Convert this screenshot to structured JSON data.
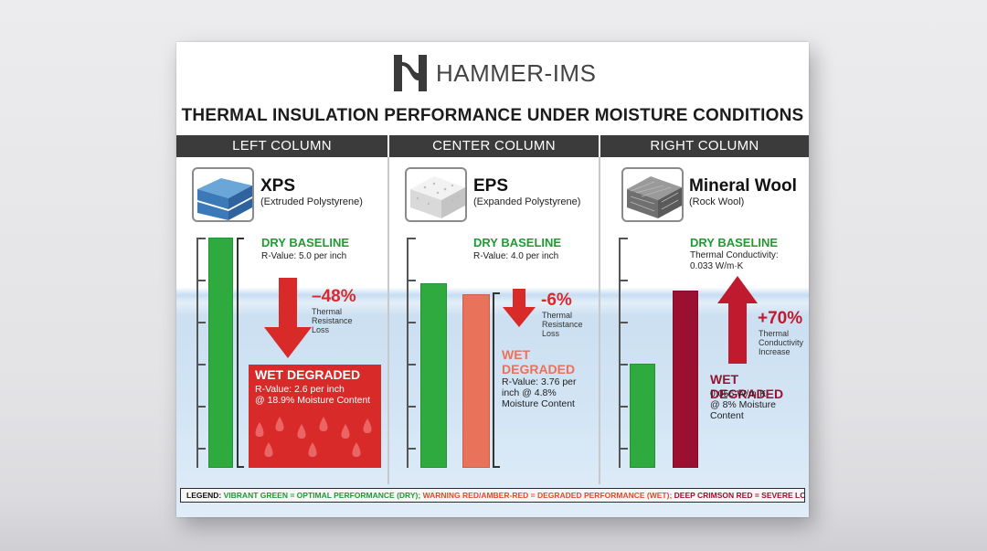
{
  "brand": {
    "name": "HAMMER-IMS"
  },
  "title": "THERMAL INSULATION PERFORMANCE UNDER MOISTURE CONDITIONS",
  "columns": [
    {
      "header": "LEFT COLUMN",
      "material": "XPS",
      "material_sub": "(Extruded Polystyrene)",
      "dry_label": "DRY BASELINE",
      "dry_desc": "R-Value: 5.0 per inch",
      "change": "–48%",
      "change_note": [
        "Thermal",
        "Resistance",
        "Loss"
      ],
      "wet_label": "WET DEGRADED",
      "wet_desc": [
        "R-Value: 2.6 per inch",
        "@ 18.9% Moisture Content"
      ]
    },
    {
      "header": "CENTER COLUMN",
      "material": "EPS",
      "material_sub": "(Expanded Polystyrene)",
      "dry_label": "DRY BASELINE",
      "dry_desc": "R-Value: 4.0 per inch",
      "change": "-6%",
      "change_note": [
        "Thermal",
        "Resistance",
        "Loss"
      ],
      "wet_label": [
        "WET",
        "DEGRADED"
      ],
      "wet_desc": [
        "R-Value: 3.76 per",
        "inch @ 4.8%",
        "Moisture Content"
      ]
    },
    {
      "header": "RIGHT COLUMN",
      "material": "Mineral Wool",
      "material_sub": "(Rock Wool)",
      "dry_label": "DRY BASELINE",
      "dry_desc": [
        "Thermal Conductivity:",
        "0.033 W/m·K"
      ],
      "change": "+70%",
      "change_note": [
        "Thermal",
        "Conductivity",
        "Increase"
      ],
      "wet_label": "WET DEGRADED",
      "wet_desc": [
        "0.056 W/m·K",
        "@ 8% Moisture",
        "Content"
      ]
    }
  ],
  "legend": {
    "key": "LEGEND:",
    "green": "VIBRANT GREEN = OPTIMAL PERFORMANCE (DRY);",
    "red": "WARNING RED/AMBER-RED = DEGRADED PERFORMANCE (WET);",
    "crimson": "DEEP CRIMSON RED = SEVERE LOSS/INCREASE (WET)"
  },
  "colors": {
    "green": "#2eaa3e",
    "warning_red": "#d92a2a",
    "amber_red": "#e8735a",
    "crimson": "#9b1030",
    "header_bar": "#3b3b3b"
  },
  "icons": [
    "xps-board-icon",
    "eps-board-icon",
    "mineral-wool-icon",
    "hammer-logo-icon",
    "down-arrow-icon",
    "up-arrow-icon",
    "water-drop-icon"
  ],
  "chart_data": {
    "type": "bar",
    "title": "THERMAL INSULATION PERFORMANCE UNDER MOISTURE CONDITIONS",
    "categories": [
      "XPS",
      "EPS",
      "Mineral Wool"
    ],
    "series": [
      {
        "name": "DRY BASELINE",
        "values": [
          5.0,
          4.0,
          0.033
        ]
      },
      {
        "name": "WET DEGRADED",
        "values": [
          2.6,
          3.76,
          0.056
        ]
      }
    ],
    "changes": [
      "–48%",
      "-6%",
      "+70%"
    ],
    "units": [
      "per inch",
      "per inch",
      "W/m·K"
    ],
    "moisture_content": [
      "18.9%",
      "4.8%",
      "8%"
    ]
  }
}
